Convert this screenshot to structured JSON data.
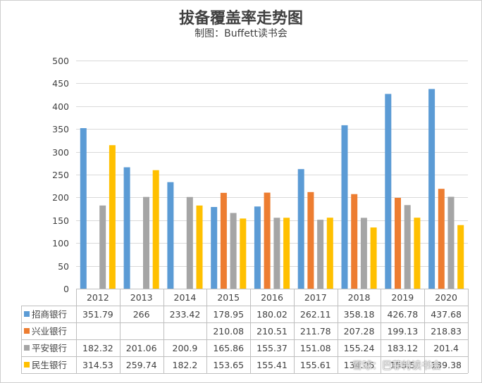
{
  "chart_data": {
    "type": "bar",
    "title": "拔备覆盖率走势图",
    "subtitle": "制图：Buffett读书会",
    "categories": [
      "2012",
      "2013",
      "2014",
      "2015",
      "2016",
      "2017",
      "2018",
      "2019",
      "2020"
    ],
    "series": [
      {
        "name": "招商银行",
        "color": "#5b9bd5",
        "values": [
          351.79,
          266,
          233.42,
          178.95,
          180.02,
          262.11,
          358.18,
          426.78,
          437.68
        ],
        "labels": [
          "351.79",
          "266",
          "233.42",
          "178.95",
          "180.02",
          "262.11",
          "358.18",
          "426.78",
          "437.68"
        ]
      },
      {
        "name": "兴业银行",
        "color": "#ed7d31",
        "values": [
          null,
          null,
          null,
          210.08,
          210.51,
          211.78,
          207.28,
          199.13,
          218.83
        ],
        "labels": [
          "",
          "",
          "",
          "210.08",
          "210.51",
          "211.78",
          "207.28",
          "199.13",
          "218.83"
        ]
      },
      {
        "name": "平安银行",
        "color": "#a5a5a5",
        "values": [
          182.32,
          201.06,
          200.9,
          165.86,
          155.37,
          151.08,
          155.24,
          183.12,
          201.4
        ],
        "labels": [
          "182.32",
          "201.06",
          "200.9",
          "165.86",
          "155.37",
          "151.08",
          "155.24",
          "183.12",
          "201.4"
        ]
      },
      {
        "name": "民生银行",
        "color": "#ffc000",
        "values": [
          314.53,
          259.74,
          182.2,
          153.65,
          155.41,
          155.61,
          134.05,
          155.5,
          139.38
        ],
        "labels": [
          "314.53",
          "259.74",
          "182.2",
          "153.65",
          "155.41",
          "155.61",
          "134.05",
          "155.5",
          "139.38"
        ]
      }
    ],
    "ylim": [
      0,
      500
    ],
    "yticks": [
      "0",
      "50",
      "100",
      "150",
      "200",
      "250",
      "300",
      "350",
      "400",
      "450",
      "500"
    ],
    "grid": true,
    "legend": "data-table",
    "watermark": "雪球：巴菲特读书会"
  }
}
